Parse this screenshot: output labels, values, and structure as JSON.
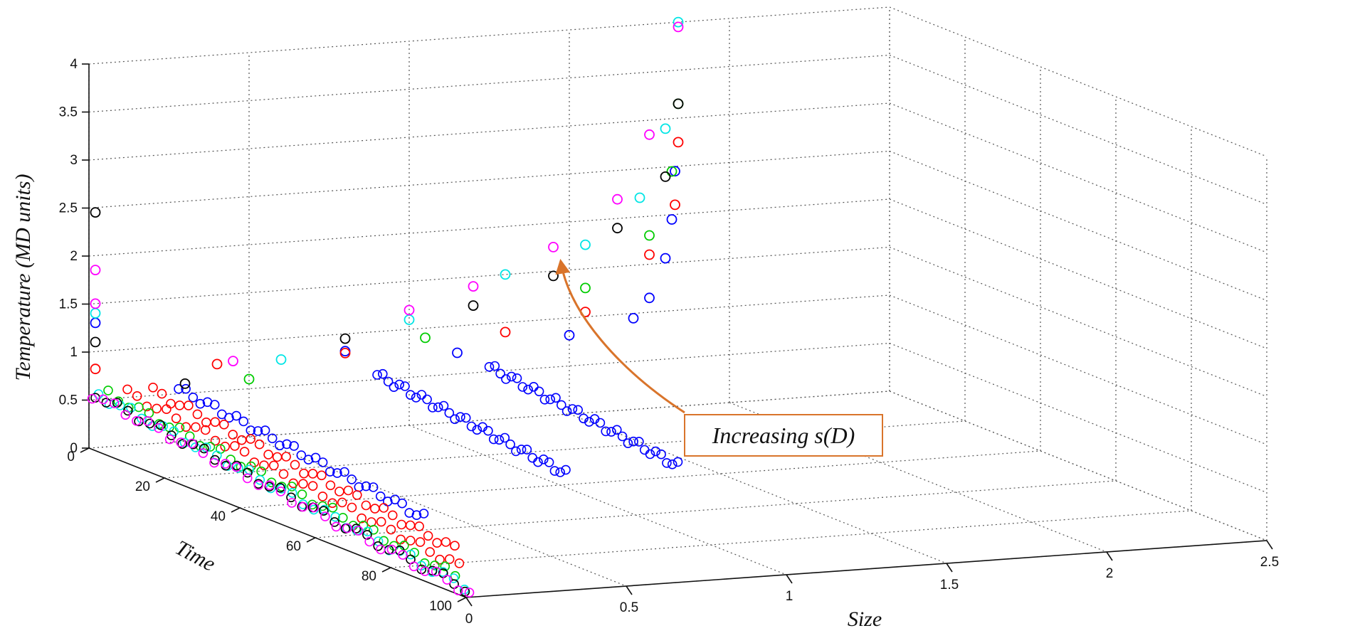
{
  "chart_data": {
    "type": "scatter",
    "projection": "3d",
    "title": "",
    "axes": {
      "size": {
        "label": "Size",
        "range": [
          0,
          2.5
        ],
        "ticks": [
          "0",
          "0.5",
          "1",
          "1.5",
          "2",
          "2.5"
        ]
      },
      "time": {
        "label": "Time",
        "range": [
          0,
          100
        ],
        "ticks": [
          "0",
          "20",
          "40",
          "60",
          "80",
          "100"
        ]
      },
      "temperature": {
        "label": "Temperature (MD units)",
        "range": [
          0,
          4
        ],
        "ticks": [
          "0",
          "0.5",
          "1",
          "1.5",
          "2",
          "2.5",
          "3",
          "3.5",
          "4"
        ]
      }
    },
    "grid": true,
    "marker": "circle-open",
    "annotation": {
      "text": "Increasing s(D)",
      "border_color": "#d9742b",
      "arrow_color": "#d9742b"
    },
    "series": [
      {
        "color": "#0000ff",
        "points": [
          {
            "size": 0.02,
            "time": 0,
            "temperature": 1.3
          },
          {
            "size": 0.8,
            "time": 0,
            "temperature": 0.82
          },
          {
            "size": 1.15,
            "time": 0,
            "temperature": 0.72
          },
          {
            "size": 1.5,
            "time": 0,
            "temperature": 0.82
          },
          {
            "size": 1.7,
            "time": 0,
            "temperature": 0.95
          },
          {
            "size": 1.75,
            "time": 0,
            "temperature": 1.15
          },
          {
            "size": 1.8,
            "time": 0,
            "temperature": 1.55
          },
          {
            "size": 1.82,
            "time": 0,
            "temperature": 1.95
          },
          {
            "size": 1.83,
            "time": 0,
            "temperature": 2.45
          }
        ],
        "bands": [
          {
            "size": 0.28,
            "time_start": 0,
            "time_end": 65
          },
          {
            "size": 0.9,
            "time_start": 0,
            "time_end": 50
          },
          {
            "size": 1.25,
            "time_start": 0,
            "time_end": 50
          }
        ]
      },
      {
        "color": "#ff0000",
        "points": [
          {
            "size": 0.02,
            "time": 0,
            "temperature": 0.82
          },
          {
            "size": 0.4,
            "time": 0,
            "temperature": 0.78
          },
          {
            "size": 0.8,
            "time": 0,
            "temperature": 0.8
          },
          {
            "size": 1.3,
            "time": 0,
            "temperature": 0.9
          },
          {
            "size": 1.55,
            "time": 0,
            "temperature": 1.05
          },
          {
            "size": 1.75,
            "time": 0,
            "temperature": 1.6
          },
          {
            "size": 1.83,
            "time": 0,
            "temperature": 2.1
          },
          {
            "size": 1.84,
            "time": 0,
            "temperature": 2.75
          }
        ],
        "bands": [
          {
            "size": 0.12,
            "time_start": 0,
            "time_end": 88
          },
          {
            "size": 0.2,
            "time_start": 0,
            "time_end": 80
          }
        ]
      },
      {
        "color": "#00cc00",
        "points": [
          {
            "size": 0.5,
            "time": 0,
            "temperature": 0.6
          },
          {
            "size": 1.05,
            "time": 0,
            "temperature": 0.9
          },
          {
            "size": 1.55,
            "time": 0,
            "temperature": 1.3
          },
          {
            "size": 1.75,
            "time": 0,
            "temperature": 1.8
          },
          {
            "size": 1.82,
            "time": 0,
            "temperature": 2.45
          },
          {
            "size": 1.84,
            "time": 0,
            "temperature": 3.15
          }
        ],
        "bands": [
          {
            "size": 0.06,
            "time_start": 0,
            "time_end": 92
          }
        ]
      },
      {
        "color": "#00e5e5",
        "points": [
          {
            "size": 0.02,
            "time": 0,
            "temperature": 1.4
          },
          {
            "size": 0.6,
            "time": 0,
            "temperature": 0.78
          },
          {
            "size": 1.0,
            "time": 0,
            "temperature": 1.1
          },
          {
            "size": 1.3,
            "time": 0,
            "temperature": 1.5
          },
          {
            "size": 1.55,
            "time": 0,
            "temperature": 1.75
          },
          {
            "size": 1.72,
            "time": 0,
            "temperature": 2.2
          },
          {
            "size": 1.8,
            "time": 0,
            "temperature": 2.9
          },
          {
            "size": 1.84,
            "time": 0,
            "temperature": 4.0
          }
        ],
        "bands": [
          {
            "size": 0.03,
            "time_start": 0,
            "time_end": 97
          }
        ]
      },
      {
        "color": "#000000",
        "points": [
          {
            "size": 0.02,
            "time": 0,
            "temperature": 2.45
          },
          {
            "size": 0.02,
            "time": 0,
            "temperature": 1.1
          },
          {
            "size": 0.3,
            "time": 0,
            "temperature": 0.6
          },
          {
            "size": 0.8,
            "time": 0,
            "temperature": 0.95
          },
          {
            "size": 1.2,
            "time": 0,
            "temperature": 1.2
          },
          {
            "size": 1.45,
            "time": 0,
            "temperature": 1.45
          },
          {
            "size": 1.65,
            "time": 0,
            "temperature": 1.9
          },
          {
            "size": 1.8,
            "time": 0,
            "temperature": 2.4
          },
          {
            "size": 1.84,
            "time": 0,
            "temperature": 3.15
          }
        ],
        "bands": [
          {
            "size": 0.02,
            "time_start": 0,
            "time_end": 98
          }
        ]
      },
      {
        "color": "#ff00ff",
        "points": [
          {
            "size": 0.02,
            "time": 0,
            "temperature": 1.85
          },
          {
            "size": 0.02,
            "time": 0,
            "temperature": 1.5
          },
          {
            "size": 0.45,
            "time": 0,
            "temperature": 0.8
          },
          {
            "size": 1.0,
            "time": 0,
            "temperature": 1.2
          },
          {
            "size": 1.2,
            "time": 0,
            "temperature": 1.4
          },
          {
            "size": 1.45,
            "time": 0,
            "temperature": 1.75
          },
          {
            "size": 1.65,
            "time": 0,
            "temperature": 2.2
          },
          {
            "size": 1.75,
            "time": 0,
            "temperature": 2.85
          },
          {
            "size": 1.84,
            "time": 0,
            "temperature": 3.95
          }
        ],
        "bands": [
          {
            "size": 0.01,
            "time_start": 0,
            "time_end": 100
          }
        ]
      }
    ]
  }
}
